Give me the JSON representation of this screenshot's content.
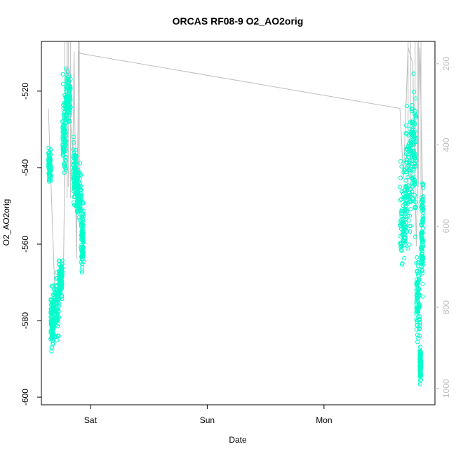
{
  "chart_data": {
    "type": "scatter",
    "title": "ORCAS RF08-9 O2_AO2orig",
    "xlabel": "Date",
    "ylabel": "O2_AO2orig",
    "x_tick_labels": [
      "Sat",
      "Sun",
      "Mon"
    ],
    "x_ticks": [
      1.0,
      2.0,
      3.0
    ],
    "xlim": [
      0.58,
      3.95
    ],
    "ylim": [
      -602,
      -507
    ],
    "y_ticks": [
      -600,
      -580,
      -560,
      -540,
      -520
    ],
    "y_tick_labels": [
      "-600",
      "-580",
      "-560",
      "-540",
      "-520"
    ],
    "right_axis": {
      "label": "",
      "ticks": [
        200,
        400,
        600,
        800,
        1000
      ],
      "tick_labels": [
        "200",
        "400",
        "600",
        "800",
        "1000"
      ],
      "lim": [
        145,
        1040
      ],
      "color": "#bdbdbd"
    },
    "grid": false,
    "colors": {
      "points": "#00ffcc",
      "line": "#bdbdbd"
    },
    "series": [
      {
        "values_note": "",
        "clusters": [
          {
            "x": [
              0.64,
              0.66
            ],
            "y": [
              -545,
              -534
            ]
          },
          {
            "x": [
              0.66,
              0.68
            ],
            "y": [
              -591,
              -568
            ]
          },
          {
            "x": [
              0.68,
              0.73
            ],
            "y": [
              -588,
              -565
            ]
          },
          {
            "x": [
              0.73,
              0.76
            ],
            "y": [
              -576,
              -563
            ]
          },
          {
            "x": [
              0.76,
              0.79
            ],
            "y": [
              -548,
              -513
            ]
          },
          {
            "x": [
              0.79,
              0.83
            ],
            "y": [
              -532,
              -512
            ]
          },
          {
            "x": [
              0.85,
              0.88
            ],
            "y": [
              -552,
              -530
            ]
          },
          {
            "x": [
              0.88,
              0.92
            ],
            "y": [
              -556,
              -538
            ]
          },
          {
            "x": [
              0.92,
              0.94
            ],
            "y": [
              -570,
              -545
            ]
          },
          {
            "x": [
              3.65,
              3.7
            ],
            "y": [
              -570,
              -536
            ]
          },
          {
            "x": [
              3.7,
              3.75
            ],
            "y": [
              -566,
              -518
            ]
          },
          {
            "x": [
              3.75,
              3.79
            ],
            "y": [
              -560,
              -512
            ]
          },
          {
            "x": [
              3.79,
              3.82
            ],
            "y": [
              -592,
              -560
            ]
          },
          {
            "x": [
              3.82,
              3.83
            ],
            "y": [
              -598,
              -585
            ]
          },
          {
            "x": [
              3.83,
              3.85
            ],
            "y": [
              -578,
              -537
            ]
          }
        ]
      }
    ],
    "line": {
      "x": [
        0.64,
        0.67,
        0.7,
        0.74,
        0.77,
        0.79,
        0.81,
        0.85,
        0.86,
        0.88,
        0.9,
        0.92,
        3.65,
        3.68,
        3.72,
        3.76,
        3.79,
        3.82,
        3.85
      ],
      "y_right": [
        310,
        560,
        800,
        760,
        690,
        210,
        260,
        420,
        170,
        680,
        170,
        175,
        310,
        480,
        160,
        200,
        650,
        160,
        600
      ]
    }
  }
}
